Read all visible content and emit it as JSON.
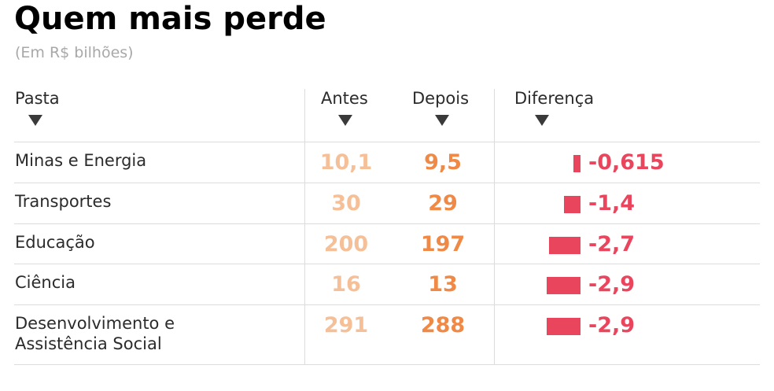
{
  "title": "Quem mais perde",
  "subtitle": "(Em R$ bilhões)",
  "columns": {
    "pasta": "Pasta",
    "antes": "Antes",
    "depois": "Depois",
    "diferenca": "Diferença"
  },
  "colors": {
    "antes": "#f5bf98",
    "depois": "#ef8945",
    "diferenca": "#e9455d",
    "sort_arrow": "#3a3a3a"
  },
  "icons": {
    "sort": "sort-down-icon"
  },
  "chart_data": {
    "type": "table",
    "title": "Quem mais perde",
    "subtitle": "(Em R$ bilhões)",
    "columns": [
      "Pasta",
      "Antes",
      "Depois",
      "Diferença"
    ],
    "rows": [
      {
        "pasta": "Minas e Energia",
        "antes": "10,1",
        "depois": "9,5",
        "diferenca": "-0,615",
        "diff_value": -0.615
      },
      {
        "pasta": "Transportes",
        "antes": "30",
        "depois": "29",
        "diferenca": "-1,4",
        "diff_value": -1.4
      },
      {
        "pasta": "Educação",
        "antes": "200",
        "depois": "197",
        "diferenca": "-2,7",
        "diff_value": -2.7
      },
      {
        "pasta": "Ciência",
        "antes": "16",
        "depois": "13",
        "diferenca": "-2,9",
        "diff_value": -2.9
      },
      {
        "pasta": "Desenvolvimento e Assistência Social",
        "antes": "291",
        "depois": "288",
        "diferenca": "-2,9",
        "diff_value": -2.9
      }
    ]
  }
}
